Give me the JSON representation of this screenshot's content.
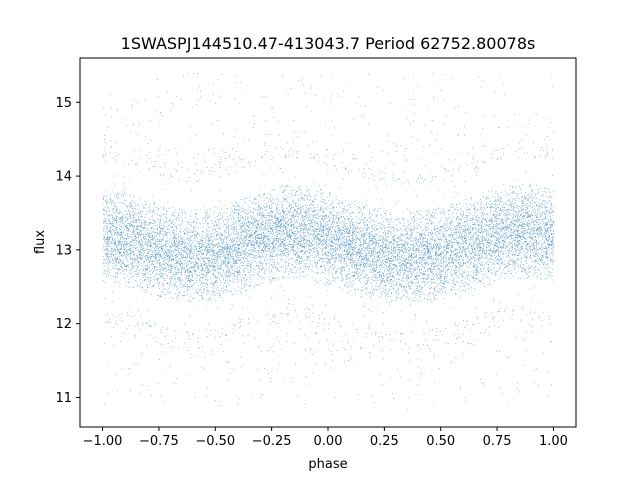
{
  "chart_data": {
    "type": "scatter",
    "title": "1SWASPJ144510.47-413043.7 Period 62752.80078s",
    "xlabel": "phase",
    "ylabel": "flux",
    "xlim": [
      -1.1,
      1.1
    ],
    "ylim": [
      10.6,
      15.6
    ],
    "grid": false,
    "x_ticks": [
      -1.0,
      -0.75,
      -0.5,
      -0.25,
      0.0,
      0.25,
      0.5,
      0.75,
      1.0
    ],
    "x_tick_labels": [
      "−1.00",
      "−0.75",
      "−0.50",
      "−0.25",
      "0.00",
      "0.25",
      "0.50",
      "0.75",
      "1.00"
    ],
    "y_ticks": [
      11,
      12,
      13,
      14,
      15
    ],
    "y_tick_labels": [
      "11",
      "12",
      "13",
      "14",
      "15"
    ],
    "marker_color": "#1f77b4",
    "series": [
      {
        "phase": [
          -1.0,
          -0.9,
          -0.8,
          -0.7,
          -0.6,
          -0.5,
          -0.4,
          -0.3,
          -0.2,
          -0.1,
          0.0,
          0.1,
          0.2,
          0.3,
          0.4,
          0.5,
          0.6,
          0.7,
          0.8,
          0.9,
          1.0
        ],
        "flux_median": [
          13.2,
          13.15,
          13.05,
          12.95,
          12.9,
          12.95,
          13.05,
          13.15,
          13.25,
          13.25,
          13.15,
          13.05,
          12.95,
          12.9,
          12.9,
          12.95,
          13.05,
          13.15,
          13.25,
          13.25,
          13.2
        ],
        "flux_min": [
          10.9,
          10.9,
          10.9,
          10.9,
          10.9,
          10.9,
          10.9,
          10.9,
          10.9,
          10.9,
          10.9,
          10.9,
          10.9,
          10.9,
          10.9,
          10.9,
          10.9,
          10.9,
          10.9,
          10.9,
          10.9
        ],
        "flux_max": [
          15.4,
          15.4,
          15.4,
          15.4,
          15.4,
          15.4,
          15.4,
          15.4,
          15.4,
          15.4,
          15.4,
          15.4,
          15.4,
          15.4,
          15.4,
          15.4,
          15.4,
          15.4,
          15.4,
          15.4,
          15.4
        ]
      }
    ]
  }
}
